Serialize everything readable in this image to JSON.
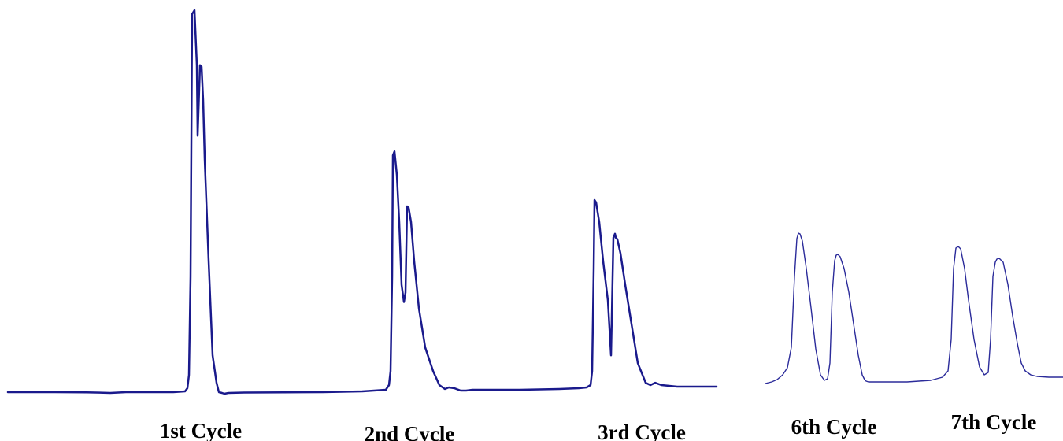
{
  "chart_data": [
    {
      "type": "line",
      "panel": "left",
      "color": "#1a1a8c",
      "axes": "none",
      "grid": false,
      "legend": "none",
      "series": [
        {
          "x": [
            0,
            60,
            100,
            130,
            150,
            175,
            210,
            225,
            228,
            230,
            232,
            234,
            237,
            240,
            241,
            242,
            244,
            246,
            248,
            250,
            255,
            260,
            265,
            268,
            272,
            275,
            280,
            300,
            350,
            400,
            450,
            480,
            484,
            486,
            488,
            489,
            491,
            494,
            497,
            500,
            503,
            505,
            507,
            509,
            512,
            516,
            522,
            530,
            540,
            548,
            555,
            560,
            567,
            575,
            578,
            582,
            590,
            650,
            700,
            725,
            735,
            740,
            742,
            744,
            745,
            747,
            751,
            756,
            762,
            766,
            769,
            771,
            772,
            774,
            778,
            784,
            792,
            800,
            810,
            816,
            822,
            830,
            850,
            900
          ],
          "y": [
            3,
            3,
            2.8,
            2,
            3,
            3,
            3,
            4,
            8,
            25,
            150,
            485,
            490,
            420,
            330,
            360,
            420,
            418,
            375,
            300,
            170,
            50,
            15,
            3,
            2,
            1,
            2,
            2.5,
            2.8,
            3,
            4,
            6,
            12,
            30,
            150,
            305,
            310,
            280,
            220,
            140,
            118,
            130,
            240,
            238,
            220,
            170,
            110,
            60,
            30,
            12,
            7,
            9,
            8,
            5,
            5,
            5,
            6,
            6,
            7,
            8,
            9,
            12,
            30,
            160,
            248,
            245,
            220,
            170,
            120,
            50,
            200,
            205,
            200,
            198,
            180,
            140,
            90,
            40,
            15,
            12,
            15,
            12,
            10,
            10
          ]
        }
      ],
      "category_labels": [
        {
          "label": "1st Cycle",
          "x": 245
        },
        {
          "label": "2nd Cycle",
          "x": 510
        },
        {
          "label": "3rd Cycle",
          "x": 805
        }
      ]
    },
    {
      "type": "line",
      "panel": "right",
      "color": "#2b2b9a",
      "axes": "none",
      "grid": false,
      "legend": "none",
      "series": [
        {
          "x": [
            0,
            8,
            15,
            22,
            28,
            33,
            37,
            40,
            42,
            44,
            47,
            52,
            58,
            64,
            70,
            75,
            79,
            82,
            85,
            88,
            90,
            92,
            95,
            100,
            106,
            112,
            118,
            123,
            126,
            128,
            131,
            140,
            180,
            210,
            225,
            232,
            236,
            239,
            242,
            245,
            248,
            253,
            258,
            265,
            272,
            278,
            283,
            286,
            289,
            292,
            294,
            297,
            302,
            308,
            314,
            320,
            325,
            330,
            337,
            345,
            360,
            378
          ],
          "y": [
            4,
            6,
            9,
            15,
            24,
            50,
            140,
            188,
            195,
            194,
            185,
            150,
            100,
            48,
            15,
            8,
            10,
            30,
            120,
            160,
            167,
            168,
            165,
            150,
            120,
            80,
            40,
            15,
            9,
            7,
            6,
            6,
            6,
            8,
            12,
            20,
            60,
            150,
            176,
            178,
            175,
            150,
            110,
            60,
            25,
            15,
            18,
            60,
            140,
            158,
            162,
            163,
            158,
            130,
            90,
            55,
            30,
            20,
            15,
            13,
            12,
            12
          ]
        }
      ],
      "category_labels": [
        {
          "label": "6th Cycle",
          "x": 87
        },
        {
          "label": "7th Cycle",
          "x": 290
        }
      ]
    }
  ]
}
